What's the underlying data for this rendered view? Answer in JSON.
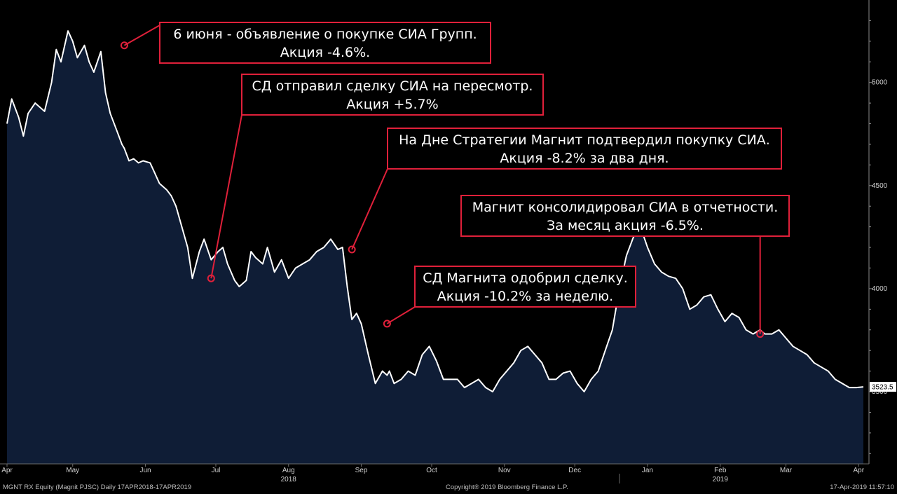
{
  "footer": {
    "left": "MGNT RX Equity (Magnit PJSC)  Daily 17APR2018-17APR2019",
    "center": "Copyright® 2019 Bloomberg Finance L.P.",
    "right": "17-Apr-2019 11:57:10"
  },
  "colors": {
    "background": "#000000",
    "area_fill": "#0f1d36",
    "line": "#ffffff",
    "annotation": "#e0203a",
    "last_price_box": "#ffffff"
  },
  "chart_data": {
    "type": "area",
    "series": [
      {
        "x": [
          "2018-04-17",
          "2018-04-19",
          "2018-04-22",
          "2018-04-24",
          "2018-04-26",
          "2018-04-29",
          "2018-05-01",
          "2018-05-03",
          "2018-05-06",
          "2018-05-08",
          "2018-05-10",
          "2018-05-13",
          "2018-05-15",
          "2018-05-17",
          "2018-05-20",
          "2018-05-22",
          "2018-05-24",
          "2018-05-27",
          "2018-05-29",
          "2018-05-31",
          "2018-06-03",
          "2018-06-05",
          "2018-06-06",
          "2018-06-08",
          "2018-06-10",
          "2018-06-12",
          "2018-06-14",
          "2018-06-17",
          "2018-06-19",
          "2018-06-21",
          "2018-06-24",
          "2018-06-26",
          "2018-06-28",
          "2018-07-01",
          "2018-07-03",
          "2018-07-05",
          "2018-07-08",
          "2018-07-10",
          "2018-07-13",
          "2018-07-16",
          "2018-07-18",
          "2018-07-20",
          "2018-07-23",
          "2018-07-25",
          "2018-07-28",
          "2018-07-30",
          "2018-08-01",
          "2018-08-04",
          "2018-08-06",
          "2018-08-09",
          "2018-08-12",
          "2018-08-15",
          "2018-08-18",
          "2018-08-21",
          "2018-08-24",
          "2018-08-27",
          "2018-08-30",
          "2018-09-02",
          "2018-09-05",
          "2018-09-07",
          "2018-09-09",
          "2018-09-11",
          "2018-09-13",
          "2018-09-15",
          "2018-09-18",
          "2018-09-21",
          "2018-09-24",
          "2018-09-26",
          "2018-09-27",
          "2018-09-29",
          "2018-10-02",
          "2018-10-05",
          "2018-10-08",
          "2018-10-11",
          "2018-10-14",
          "2018-10-17",
          "2018-10-20",
          "2018-10-23",
          "2018-10-26",
          "2018-10-29",
          "2018-11-01",
          "2018-11-04",
          "2018-11-07",
          "2018-11-10",
          "2018-11-13",
          "2018-11-16",
          "2018-11-19",
          "2018-11-22",
          "2018-11-25",
          "2018-11-28",
          "2018-12-01",
          "2018-12-04",
          "2018-12-07",
          "2018-12-10",
          "2018-12-13",
          "2018-12-16",
          "2018-12-19",
          "2018-12-22",
          "2018-12-25",
          "2018-12-28",
          "2018-12-31",
          "2019-01-03",
          "2019-01-06",
          "2019-01-09",
          "2019-01-12",
          "2019-01-15",
          "2019-01-18",
          "2019-01-21",
          "2019-01-24",
          "2019-01-27",
          "2019-01-30",
          "2019-02-02",
          "2019-02-05",
          "2019-02-08",
          "2019-02-11",
          "2019-02-14",
          "2019-02-17",
          "2019-02-20",
          "2019-02-23",
          "2019-02-26",
          "2019-03-01",
          "2019-03-04",
          "2019-03-06",
          "2019-03-09",
          "2019-03-12",
          "2019-03-15",
          "2019-03-18",
          "2019-03-21",
          "2019-03-24",
          "2019-03-27",
          "2019-03-30",
          "2019-04-02",
          "2019-04-05",
          "2019-04-08",
          "2019-04-11",
          "2019-04-14",
          "2019-04-17"
        ],
        "values": [
          4800,
          4920,
          4830,
          4740,
          4850,
          4900,
          4880,
          4860,
          5000,
          5160,
          5100,
          5250,
          5200,
          5120,
          5180,
          5100,
          5050,
          5150,
          4950,
          4850,
          4760,
          4700,
          4680,
          4620,
          4630,
          4610,
          4620,
          4610,
          4560,
          4510,
          4480,
          4450,
          4400,
          4280,
          4200,
          4050,
          4180,
          4240,
          4140,
          4180,
          4200,
          4120,
          4040,
          4010,
          4040,
          4180,
          4150,
          4120,
          4200,
          4080,
          4140,
          4050,
          4100,
          4120,
          4140,
          4180,
          4200,
          4240,
          4190,
          4200,
          4010,
          3850,
          3880,
          3830,
          3680,
          3540,
          3600,
          3580,
          3600,
          3540,
          3560,
          3600,
          3580,
          3680,
          3720,
          3650,
          3560,
          3560,
          3560,
          3520,
          3540,
          3560,
          3520,
          3500,
          3560,
          3600,
          3640,
          3700,
          3720,
          3680,
          3640,
          3560,
          3560,
          3590,
          3600,
          3540,
          3500,
          3560,
          3600,
          3700,
          3800,
          4000,
          4160,
          4250,
          4300,
          4200,
          4120,
          4080,
          4060,
          4050,
          4000,
          3900,
          3920,
          3960,
          3970,
          3900,
          3840,
          3880,
          3860,
          3800,
          3780,
          3800,
          3780,
          3780,
          3800,
          3760,
          3720,
          3700,
          3680,
          3640,
          3620,
          3600,
          3560,
          3540,
          3520,
          3520,
          3523.5
        ]
      }
    ],
    "ylim": [
      3150,
      5400
    ],
    "yticks": [
      4000,
      4500,
      5000,
      3500
    ],
    "y_tick_labels": [
      "4000",
      "4500",
      "5000",
      "3500"
    ],
    "last_value": 3523.5,
    "last_value_label": "3523.5",
    "x_month_labels": [
      {
        "date": "2018-04-17",
        "label": "Apr"
      },
      {
        "date": "2018-05-15",
        "label": "May"
      },
      {
        "date": "2018-06-15",
        "label": "Jun"
      },
      {
        "date": "2018-07-15",
        "label": "Jul"
      },
      {
        "date": "2018-08-15",
        "label": "Aug"
      },
      {
        "date": "2018-09-15",
        "label": "Sep"
      },
      {
        "date": "2018-10-15",
        "label": "Oct"
      },
      {
        "date": "2018-11-15",
        "label": "Nov"
      },
      {
        "date": "2018-12-15",
        "label": "Dec"
      },
      {
        "date": "2019-01-15",
        "label": "Jan"
      },
      {
        "date": "2019-02-15",
        "label": "Feb"
      },
      {
        "date": "2019-03-15",
        "label": "Mar"
      },
      {
        "date": "2019-04-15",
        "label": "Apr"
      }
    ],
    "x_year_labels": [
      {
        "date": "2018-08-15",
        "label": "2018"
      },
      {
        "date": "2019-02-15",
        "label": "2019"
      }
    ],
    "grid": false,
    "legend": "none",
    "annotations": [
      {
        "date": "2018-06-06",
        "value": 5180,
        "lines": [
          "6 июня - объявление о покупке СИА Групп.",
          "Акция -4.6%."
        ]
      },
      {
        "date": "2018-07-13",
        "value": 4050,
        "lines": [
          "СД отправил сделку СИА на пересмотр.",
          "Акция +5.7%"
        ]
      },
      {
        "date": "2018-09-11",
        "value": 4190,
        "lines": [
          "На Дне Стратегии Магнит подтвердил покупку СИА.",
          "Акция -8.2% за два дня."
        ]
      },
      {
        "date": "2018-09-26",
        "value": 3830,
        "lines": [
          "СД Магнита одобрил сделку.",
          "Акция -10.2% за неделю."
        ]
      },
      {
        "date": "2019-03-04",
        "value": 3780,
        "lines": [
          "Магнит консолидировал СИА в отчетности.",
          "За месяц акция -6.5%."
        ]
      }
    ]
  }
}
